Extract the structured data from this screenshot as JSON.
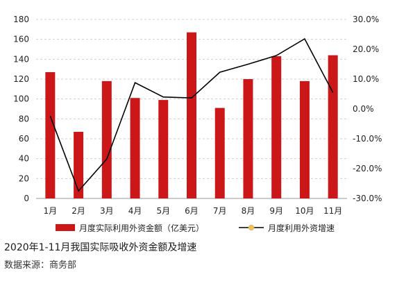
{
  "chart_data": {
    "type": "bar+line",
    "categories": [
      "1月",
      "2月",
      "3月",
      "4月",
      "5月",
      "6月",
      "7月",
      "8月",
      "9月",
      "10月",
      "11月"
    ],
    "series": [
      {
        "name": "月度实际利用外资金额（亿美元）",
        "kind": "bar",
        "axis": "left",
        "color": "#cc1719",
        "values": [
          127,
          67,
          118,
          101,
          99,
          167,
          91,
          120,
          143,
          118,
          144
        ]
      },
      {
        "name": "月度利用外资增速",
        "kind": "line",
        "axis": "right",
        "color": "#000000",
        "marker_color": "#f2c14e",
        "values": [
          -2.4,
          -27.5,
          -16.8,
          8.8,
          4.0,
          3.7,
          12.3,
          15.0,
          17.9,
          23.5,
          5.5
        ]
      }
    ],
    "y_left": {
      "min": 0,
      "max": 180,
      "step": 20,
      "ticks": [
        "0",
        "20",
        "40",
        "60",
        "80",
        "100",
        "120",
        "140",
        "160",
        "180"
      ]
    },
    "y_right": {
      "min": -30,
      "max": 30,
      "step": 10,
      "ticks": [
        "-30.0%",
        "-20.0%",
        "-10.0%",
        "0.0%",
        "10.0%",
        "20.0%",
        "30.0%"
      ]
    },
    "grid": true,
    "legend_position": "bottom"
  },
  "caption": {
    "title": "2020年1-11月我国实际吸收外资金额及增速",
    "source": "数据来源：商务部"
  }
}
